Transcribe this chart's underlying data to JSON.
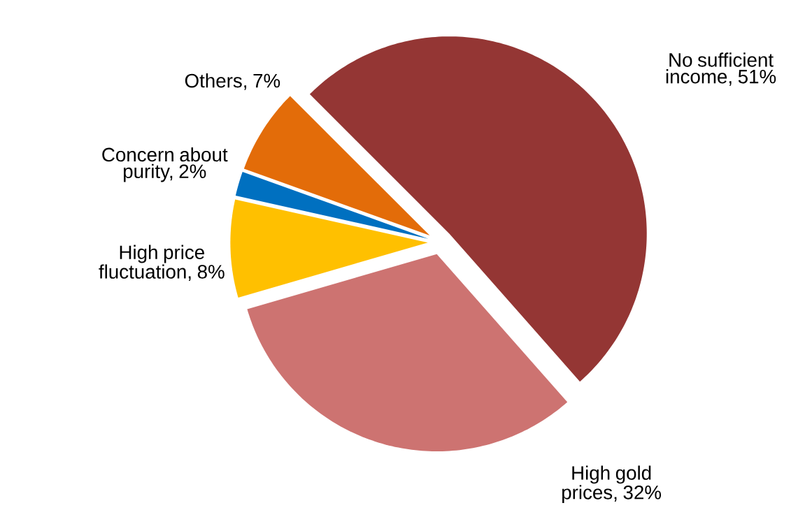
{
  "chart_data": {
    "type": "pie",
    "categories": [
      "No sufficient income, 51%",
      "High gold prices, 32%",
      "High price fluctuation, 8%",
      "Concern about purity, 2%",
      "Others, 7%"
    ],
    "values": [
      51,
      32,
      8,
      2,
      7
    ],
    "colors": [
      "#943634",
      "#cd7371",
      "#ffc000",
      "#0070c0",
      "#e36c09"
    ]
  }
}
